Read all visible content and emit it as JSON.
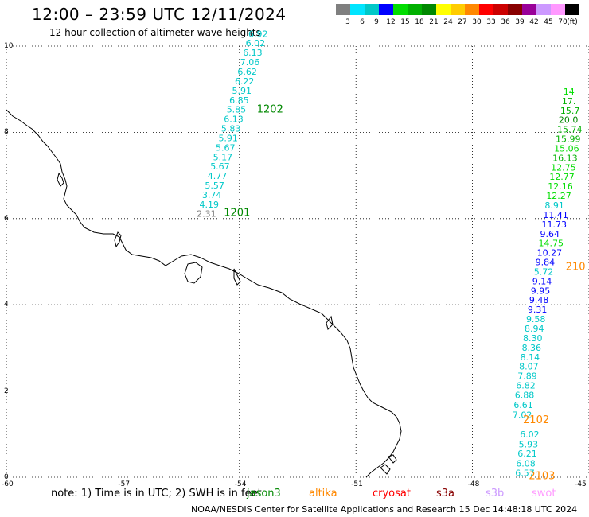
{
  "header": {
    "title": "12:00 – 23:59 UTC 12/11/2024",
    "subtitle": "12 hour collection of altimeter wave heights"
  },
  "color_scale": {
    "unit": "(ft)",
    "steps": [
      {
        "label": "3",
        "color": "#7f7f7f"
      },
      {
        "label": "6",
        "color": "#00e5ff"
      },
      {
        "label": "9",
        "color": "#00c8c8"
      },
      {
        "label": "12",
        "color": "#0000ff"
      },
      {
        "label": "15",
        "color": "#00dd00"
      },
      {
        "label": "18",
        "color": "#00b000"
      },
      {
        "label": "21",
        "color": "#008800"
      },
      {
        "label": "24",
        "color": "#ffff00"
      },
      {
        "label": "27",
        "color": "#ffcc00"
      },
      {
        "label": "30",
        "color": "#ff8800"
      },
      {
        "label": "33",
        "color": "#ff0000"
      },
      {
        "label": "36",
        "color": "#cc0000"
      },
      {
        "label": "39",
        "color": "#880000"
      },
      {
        "label": "42",
        "color": "#990099"
      },
      {
        "label": "45",
        "color": "#cc99ff"
      },
      {
        "label": "70",
        "color": "#ff99ff"
      },
      {
        "label": "",
        "color": "#000000"
      }
    ]
  },
  "axes": {
    "x_ticks": [
      "-60",
      "-57",
      "-54",
      "-51",
      "-48",
      "-45"
    ],
    "y_ticks": [
      "10",
      "8",
      "6",
      "4",
      "2",
      "0"
    ],
    "x_range": [
      -60,
      -45
    ],
    "y_range": [
      0,
      10
    ]
  },
  "passes": [
    {
      "label": "1202",
      "color": "#008800",
      "lon": -53.55,
      "lat": 8.55
    },
    {
      "label": "1201",
      "color": "#008800",
      "lon": -54.4,
      "lat": 6.15
    },
    {
      "label": "210",
      "color": "#ff8800",
      "lon": -45.6,
      "lat": 4.9
    },
    {
      "label": "2102",
      "color": "#ff8800",
      "lon": -46.7,
      "lat": 1.35
    },
    {
      "label": "2103",
      "color": "#ff8800",
      "lon": -46.55,
      "lat": 0.05
    }
  ],
  "tracks": [
    {
      "name": "track-1201-1202",
      "points": [
        {
          "lon": -55.1,
          "lat": 6.12,
          "v": "2.31",
          "c": "#7f7f7f"
        },
        {
          "lon": -55.03,
          "lat": 6.33,
          "v": "4.19",
          "c": "#00c8c8"
        },
        {
          "lon": -54.96,
          "lat": 6.55,
          "v": "3.74",
          "c": "#00c8c8"
        },
        {
          "lon": -54.89,
          "lat": 6.77,
          "v": "5.57",
          "c": "#00c8c8"
        },
        {
          "lon": -54.82,
          "lat": 6.99,
          "v": "4.77",
          "c": "#00c8c8"
        },
        {
          "lon": -54.75,
          "lat": 7.21,
          "v": "5.67",
          "c": "#00c8c8"
        },
        {
          "lon": -54.68,
          "lat": 7.43,
          "v": "5.17",
          "c": "#00c8c8"
        },
        {
          "lon": -54.61,
          "lat": 7.65,
          "v": "5.67",
          "c": "#00c8c8"
        },
        {
          "lon": -54.54,
          "lat": 7.87,
          "v": "5.91",
          "c": "#00c8c8"
        },
        {
          "lon": -54.47,
          "lat": 8.09,
          "v": "5.83",
          "c": "#00c8c8"
        },
        {
          "lon": -54.4,
          "lat": 8.31,
          "v": "6.13",
          "c": "#00c8c8"
        },
        {
          "lon": -54.33,
          "lat": 8.53,
          "v": "5.85",
          "c": "#00c8c8"
        },
        {
          "lon": -54.26,
          "lat": 8.75,
          "v": "6.85",
          "c": "#00c8c8"
        },
        {
          "lon": -54.19,
          "lat": 8.97,
          "v": "5.91",
          "c": "#00c8c8"
        },
        {
          "lon": -54.12,
          "lat": 9.19,
          "v": "6.22",
          "c": "#00c8c8"
        },
        {
          "lon": -54.05,
          "lat": 9.41,
          "v": "6.62",
          "c": "#00c8c8"
        },
        {
          "lon": -53.98,
          "lat": 9.63,
          "v": "7.06",
          "c": "#00c8c8"
        },
        {
          "lon": -53.91,
          "lat": 9.85,
          "v": "6.13",
          "c": "#00c8c8"
        },
        {
          "lon": -53.84,
          "lat": 10.07,
          "v": "6.02",
          "c": "#00c8c8"
        },
        {
          "lon": -53.77,
          "lat": 10.29,
          "v": "6.92",
          "c": "#00c8c8"
        }
      ]
    },
    {
      "name": "track-2101-2103",
      "points": [
        {
          "lon": -46.9,
          "lat": 0.1,
          "v": "6.57",
          "c": "#00c8c8"
        },
        {
          "lon": -46.88,
          "lat": 0.32,
          "v": "6.08",
          "c": "#00c8c8"
        },
        {
          "lon": -46.84,
          "lat": 0.55,
          "v": "6.21",
          "c": "#00c8c8"
        },
        {
          "lon": -46.81,
          "lat": 0.77,
          "v": "5.93",
          "c": "#00c8c8"
        },
        {
          "lon": -46.78,
          "lat": 1.0,
          "v": "6.02",
          "c": "#00c8c8"
        },
        {
          "lon": -46.97,
          "lat": 1.45,
          "v": "7.02",
          "c": "#00c8c8"
        },
        {
          "lon": -46.94,
          "lat": 1.68,
          "v": "6.61",
          "c": "#00c8c8"
        },
        {
          "lon": -46.91,
          "lat": 1.91,
          "v": "6.88",
          "c": "#00c8c8"
        },
        {
          "lon": -46.88,
          "lat": 2.13,
          "v": "6.82",
          "c": "#00c8c8"
        },
        {
          "lon": -46.84,
          "lat": 2.35,
          "v": "7.89",
          "c": "#00c8c8"
        },
        {
          "lon": -46.8,
          "lat": 2.57,
          "v": "8.07",
          "c": "#00c8c8"
        },
        {
          "lon": -46.77,
          "lat": 2.79,
          "v": "8.14",
          "c": "#00c8c8"
        },
        {
          "lon": -46.73,
          "lat": 3.01,
          "v": "8.36",
          "c": "#00c8c8"
        },
        {
          "lon": -46.7,
          "lat": 3.23,
          "v": "8.30",
          "c": "#00c8c8"
        },
        {
          "lon": -46.66,
          "lat": 3.45,
          "v": "8.94",
          "c": "#00c8c8"
        },
        {
          "lon": -46.62,
          "lat": 3.67,
          "v": "9.58",
          "c": "#00c8c8"
        },
        {
          "lon": -46.58,
          "lat": 3.89,
          "v": "9.31",
          "c": "#0000ff"
        },
        {
          "lon": -46.54,
          "lat": 4.11,
          "v": "9.48",
          "c": "#0000ff"
        },
        {
          "lon": -46.5,
          "lat": 4.33,
          "v": "9.95",
          "c": "#0000ff"
        },
        {
          "lon": -46.46,
          "lat": 4.55,
          "v": "9.14",
          "c": "#0000ff"
        },
        {
          "lon": -46.42,
          "lat": 4.77,
          "v": "5.72",
          "c": "#00c8c8"
        },
        {
          "lon": -46.38,
          "lat": 4.99,
          "v": "9.84",
          "c": "#0000ff"
        },
        {
          "lon": -46.34,
          "lat": 5.21,
          "v": "10.27",
          "c": "#0000ff"
        },
        {
          "lon": -46.3,
          "lat": 5.43,
          "v": "14.75",
          "c": "#00dd00"
        },
        {
          "lon": -46.26,
          "lat": 5.65,
          "v": "9.64",
          "c": "#0000ff"
        },
        {
          "lon": -46.22,
          "lat": 5.87,
          "v": "11.73",
          "c": "#0000ff"
        },
        {
          "lon": -46.18,
          "lat": 6.09,
          "v": "11.41",
          "c": "#0000ff"
        },
        {
          "lon": -46.14,
          "lat": 6.31,
          "v": "8.91",
          "c": "#00c8c8"
        },
        {
          "lon": -46.1,
          "lat": 6.53,
          "v": "12.27",
          "c": "#00dd00"
        },
        {
          "lon": -46.06,
          "lat": 6.75,
          "v": "12.16",
          "c": "#00dd00"
        },
        {
          "lon": -46.02,
          "lat": 6.97,
          "v": "12.77",
          "c": "#00dd00"
        },
        {
          "lon": -45.98,
          "lat": 7.19,
          "v": "12.75",
          "c": "#00dd00"
        },
        {
          "lon": -45.94,
          "lat": 7.41,
          "v": "16.13",
          "c": "#00b000"
        },
        {
          "lon": -45.9,
          "lat": 7.63,
          "v": "15.06",
          "c": "#00dd00"
        },
        {
          "lon": -45.86,
          "lat": 7.85,
          "v": "15.99",
          "c": "#00b000"
        },
        {
          "lon": -45.82,
          "lat": 8.07,
          "v": "15.74",
          "c": "#00b000"
        },
        {
          "lon": -45.78,
          "lat": 8.29,
          "v": "20.0",
          "c": "#008800"
        },
        {
          "lon": -45.74,
          "lat": 8.51,
          "v": "15.7",
          "c": "#00b000"
        },
        {
          "lon": -45.7,
          "lat": 8.73,
          "v": "17.",
          "c": "#00b000"
        },
        {
          "lon": -45.66,
          "lat": 8.95,
          "v": "14",
          "c": "#00dd00"
        }
      ]
    }
  ],
  "note": "note: 1) Time is in UTC; 2) SWH is in feet",
  "legend": [
    {
      "label": "jason3",
      "color": "#008800"
    },
    {
      "label": "altika",
      "color": "#ff8800"
    },
    {
      "label": "cryosat",
      "color": "#ff0000"
    },
    {
      "label": "s3a",
      "color": "#880000"
    },
    {
      "label": "s3b",
      "color": "#cc99ff"
    },
    {
      "label": "swot",
      "color": "#ff99ff"
    }
  ],
  "credit": "NOAA/NESDIS Center for Satellite Applications and Research   15 Dec 14:48:18 UTC 2024"
}
